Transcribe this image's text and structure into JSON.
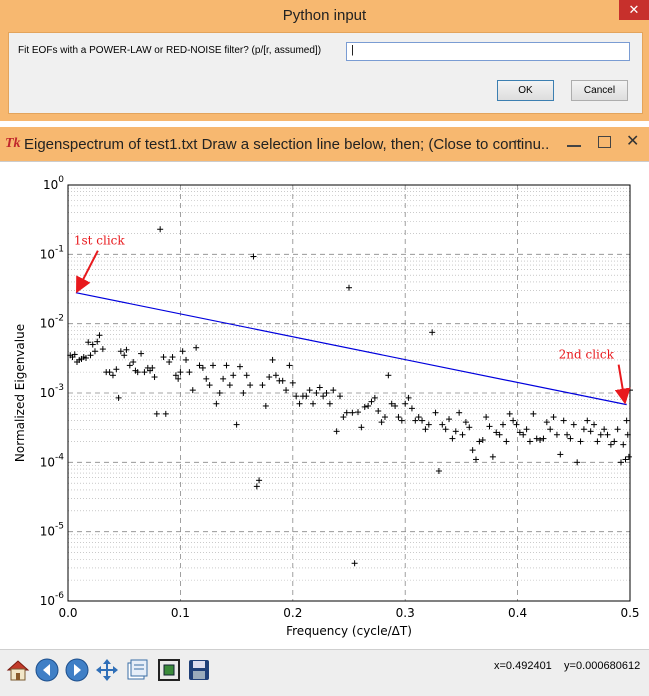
{
  "dialog": {
    "title": "Python input",
    "prompt": "Fit EOFs with a POWER-LAW or RED-NOISE filter? (p/[r, assumed])",
    "input_value": "|",
    "ok_label": "OK",
    "cancel_label": "Cancel",
    "close_glyph": "✕"
  },
  "window": {
    "title": "Eigenspectrum of test1.txt Draw a selection line below, then; (Close to continu...",
    "tk_glyph": "Tk"
  },
  "toolbar": {
    "x_readout": "x=0.492401",
    "y_readout": "y=0.000680612",
    "buttons": [
      "home-icon",
      "back-icon",
      "forward-icon",
      "pan-icon",
      "subplots-icon",
      "zoom-icon",
      "save-icon"
    ]
  },
  "chart_data": {
    "type": "scatter",
    "xlabel": "Frequency (cycle/ΔT)",
    "ylabel": "Normalized Eigenvalue",
    "xlim": [
      0.0,
      0.5
    ],
    "ylim_log10": [
      -6,
      0
    ],
    "yscale": "log",
    "x_ticks": [
      "0.0",
      "0.1",
      "0.2",
      "0.3",
      "0.4",
      "0.5"
    ],
    "y_tick_exponents": [
      "-6",
      "-5",
      "-4",
      "-3",
      "-2",
      "-1",
      "0"
    ],
    "grid": true,
    "marker": "+",
    "line": {
      "x": [
        0.007,
        0.497
      ],
      "y": [
        0.028,
        0.00068
      ],
      "color": "#0000dd"
    },
    "annotations": [
      {
        "text": "1st click",
        "x": 0.007,
        "y": 0.028,
        "color": "#e8191d"
      },
      {
        "text": "2nd click",
        "x": 0.497,
        "y": 0.00068,
        "color": "#e8191d"
      }
    ],
    "points": [
      [
        0.002,
        0.0035
      ],
      [
        0.004,
        0.0033
      ],
      [
        0.006,
        0.0036
      ],
      [
        0.008,
        0.0028
      ],
      [
        0.01,
        0.003
      ],
      [
        0.012,
        0.0031
      ],
      [
        0.014,
        0.0033
      ],
      [
        0.016,
        0.0032
      ],
      [
        0.018,
        0.0054
      ],
      [
        0.02,
        0.0035
      ],
      [
        0.022,
        0.005
      ],
      [
        0.024,
        0.004
      ],
      [
        0.026,
        0.0055
      ],
      [
        0.028,
        0.0068
      ],
      [
        0.031,
        0.0043
      ],
      [
        0.034,
        0.002
      ],
      [
        0.037,
        0.002
      ],
      [
        0.04,
        0.0018
      ],
      [
        0.043,
        0.0022
      ],
      [
        0.045,
        0.00085
      ],
      [
        0.047,
        0.004
      ],
      [
        0.05,
        0.0035
      ],
      [
        0.052,
        0.0042
      ],
      [
        0.055,
        0.0025
      ],
      [
        0.058,
        0.0028
      ],
      [
        0.06,
        0.0021
      ],
      [
        0.062,
        0.002
      ],
      [
        0.065,
        0.0037
      ],
      [
        0.068,
        0.002
      ],
      [
        0.071,
        0.0023
      ],
      [
        0.073,
        0.0021
      ],
      [
        0.075,
        0.0023
      ],
      [
        0.077,
        0.0017
      ],
      [
        0.079,
        0.0005
      ],
      [
        0.082,
        0.23
      ],
      [
        0.085,
        0.0033
      ],
      [
        0.087,
        0.0005
      ],
      [
        0.09,
        0.0028
      ],
      [
        0.093,
        0.0033
      ],
      [
        0.096,
        0.0018
      ],
      [
        0.098,
        0.0016
      ],
      [
        0.1,
        0.002
      ],
      [
        0.102,
        0.004
      ],
      [
        0.105,
        0.003
      ],
      [
        0.108,
        0.002
      ],
      [
        0.111,
        0.0011
      ],
      [
        0.114,
        0.0045
      ],
      [
        0.117,
        0.0025
      ],
      [
        0.12,
        0.0023
      ],
      [
        0.123,
        0.0016
      ],
      [
        0.126,
        0.0013
      ],
      [
        0.129,
        0.0025
      ],
      [
        0.132,
        0.0007
      ],
      [
        0.135,
        0.001
      ],
      [
        0.138,
        0.0016
      ],
      [
        0.141,
        0.0025
      ],
      [
        0.144,
        0.0013
      ],
      [
        0.147,
        0.0018
      ],
      [
        0.15,
        0.00035
      ],
      [
        0.153,
        0.0024
      ],
      [
        0.156,
        0.001
      ],
      [
        0.159,
        0.0018
      ],
      [
        0.162,
        0.0013
      ],
      [
        0.165,
        0.093
      ],
      [
        0.168,
        4.5e-05
      ],
      [
        0.17,
        5.5e-05
      ],
      [
        0.173,
        0.0013
      ],
      [
        0.176,
        0.00065
      ],
      [
        0.179,
        0.0017
      ],
      [
        0.182,
        0.003
      ],
      [
        0.185,
        0.0018
      ],
      [
        0.188,
        0.0015
      ],
      [
        0.191,
        0.0015
      ],
      [
        0.194,
        0.0011
      ],
      [
        0.197,
        0.0025
      ],
      [
        0.2,
        0.0014
      ],
      [
        0.203,
        0.0009
      ],
      [
        0.206,
        0.0007
      ],
      [
        0.209,
        0.0009
      ],
      [
        0.212,
        0.0009
      ],
      [
        0.215,
        0.0011
      ],
      [
        0.218,
        0.0007
      ],
      [
        0.221,
        0.001
      ],
      [
        0.224,
        0.0012
      ],
      [
        0.227,
        0.0009
      ],
      [
        0.23,
        0.001
      ],
      [
        0.233,
        0.0007
      ],
      [
        0.236,
        0.0011
      ],
      [
        0.239,
        0.00028
      ],
      [
        0.242,
        0.0009
      ],
      [
        0.245,
        0.00045
      ],
      [
        0.248,
        0.00052
      ],
      [
        0.25,
        0.033
      ],
      [
        0.253,
        0.00052
      ],
      [
        0.255,
        3.5e-06
      ],
      [
        0.258,
        0.00053
      ],
      [
        0.261,
        0.00032
      ],
      [
        0.264,
        0.00063
      ],
      [
        0.267,
        0.00065
      ],
      [
        0.27,
        0.00075
      ],
      [
        0.273,
        0.00085
      ],
      [
        0.276,
        0.00055
      ],
      [
        0.279,
        0.00038
      ],
      [
        0.282,
        0.00045
      ],
      [
        0.285,
        0.0018
      ],
      [
        0.288,
        0.0007
      ],
      [
        0.291,
        0.00065
      ],
      [
        0.294,
        0.00045
      ],
      [
        0.297,
        0.0004
      ],
      [
        0.3,
        0.0007
      ],
      [
        0.303,
        0.00085
      ],
      [
        0.306,
        0.0006
      ],
      [
        0.309,
        0.0004
      ],
      [
        0.312,
        0.00045
      ],
      [
        0.315,
        0.0004
      ],
      [
        0.318,
        0.0003
      ],
      [
        0.321,
        0.00035
      ],
      [
        0.324,
        0.0075
      ],
      [
        0.327,
        0.00052
      ],
      [
        0.33,
        7.5e-05
      ],
      [
        0.333,
        0.00035
      ],
      [
        0.336,
        0.0003
      ],
      [
        0.339,
        0.00042
      ],
      [
        0.342,
        0.00022
      ],
      [
        0.345,
        0.00028
      ],
      [
        0.348,
        0.00052
      ],
      [
        0.351,
        0.00025
      ],
      [
        0.354,
        0.00038
      ],
      [
        0.357,
        0.00032
      ],
      [
        0.36,
        0.00015
      ],
      [
        0.363,
        0.00011
      ],
      [
        0.366,
        0.0002
      ],
      [
        0.369,
        0.00021
      ],
      [
        0.372,
        0.00045
      ],
      [
        0.375,
        0.00033
      ],
      [
        0.378,
        0.00012
      ],
      [
        0.381,
        0.00027
      ],
      [
        0.384,
        0.00025
      ],
      [
        0.387,
        0.00035
      ],
      [
        0.39,
        0.0002
      ],
      [
        0.393,
        0.0005
      ],
      [
        0.396,
        0.0004
      ],
      [
        0.399,
        0.00035
      ],
      [
        0.402,
        0.00027
      ],
      [
        0.405,
        0.00025
      ],
      [
        0.408,
        0.0003
      ],
      [
        0.411,
        0.0002
      ],
      [
        0.414,
        0.0005
      ],
      [
        0.417,
        0.00022
      ],
      [
        0.42,
        0.00021
      ],
      [
        0.423,
        0.00022
      ],
      [
        0.426,
        0.00038
      ],
      [
        0.429,
        0.0003
      ],
      [
        0.432,
        0.00045
      ],
      [
        0.435,
        0.00025
      ],
      [
        0.438,
        0.00013
      ],
      [
        0.441,
        0.0004
      ],
      [
        0.444,
        0.00025
      ],
      [
        0.447,
        0.00022
      ],
      [
        0.45,
        0.00035
      ],
      [
        0.453,
        0.0001
      ],
      [
        0.456,
        0.0002
      ],
      [
        0.459,
        0.0003
      ],
      [
        0.462,
        0.0004
      ],
      [
        0.465,
        0.00028
      ],
      [
        0.468,
        0.00035
      ],
      [
        0.471,
        0.0002
      ],
      [
        0.474,
        0.00025
      ],
      [
        0.477,
        0.0003
      ],
      [
        0.48,
        0.00025
      ],
      [
        0.483,
        0.00018
      ],
      [
        0.486,
        0.0002
      ],
      [
        0.489,
        0.0003
      ],
      [
        0.492,
        0.0001
      ],
      [
        0.494,
        0.00018
      ],
      [
        0.496,
        0.00011
      ],
      [
        0.497,
        0.0004
      ],
      [
        0.498,
        0.00025
      ],
      [
        0.499,
        0.00012
      ],
      [
        0.5,
        0.0011
      ]
    ]
  }
}
